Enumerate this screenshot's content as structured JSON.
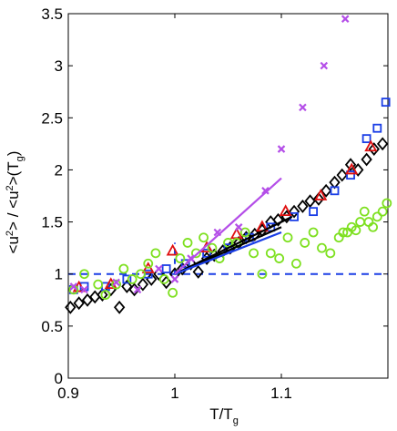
{
  "chart_data": {
    "type": "scatter",
    "title": "",
    "xlabel": "T/T_g",
    "ylabel": "<u^2> / <u^2>(T_g)",
    "xlim": [
      0.9,
      1.2
    ],
    "ylim": [
      0,
      3.5
    ],
    "x_ticks": [
      0.9,
      1.0,
      1.1
    ],
    "x_tick_labels": [
      "0.9",
      "1",
      "1.1"
    ],
    "y_ticks": [
      0,
      0.5,
      1,
      1.5,
      2,
      2.5,
      3,
      3.5
    ],
    "y_tick_labels": [
      "0",
      "0.5",
      "1",
      "1.5",
      "2",
      "2.5",
      "3",
      "3.5"
    ],
    "grid": false,
    "colors": {
      "black": "#000000",
      "blue": "#1a3ee6",
      "red": "#e01010",
      "green": "#7ee020",
      "magenta": "#b44ee8",
      "reference": "#1a3ee6"
    },
    "reference_lines": [
      {
        "orientation": "horizontal",
        "value": 1.0,
        "style": "dashed"
      },
      {
        "orientation": "vertical",
        "value": 1.0,
        "y_range": [
          1.0,
          1.3
        ],
        "style": "dashed"
      }
    ],
    "fit_lines": [
      {
        "color": "black",
        "x": [
          1.0,
          1.1
        ],
        "y": [
          1.0,
          1.45
        ]
      },
      {
        "color": "black",
        "x": [
          1.0,
          1.11
        ],
        "y": [
          1.0,
          1.55
        ]
      },
      {
        "color": "blue",
        "x": [
          1.0,
          1.1
        ],
        "y": [
          1.0,
          1.4
        ]
      },
      {
        "color": "magenta",
        "x": [
          1.0,
          1.1
        ],
        "y": [
          1.0,
          1.92
        ]
      }
    ],
    "series": [
      {
        "marker": "diamond",
        "color": "black",
        "x": [
          0.902,
          0.91,
          0.918,
          0.925,
          0.932,
          0.94,
          0.948,
          0.955,
          0.962,
          0.97,
          0.978,
          0.985,
          0.992,
          1.0,
          1.007,
          1.015,
          1.022,
          1.03,
          1.037,
          1.045,
          1.052,
          1.06,
          1.067,
          1.075,
          1.082,
          1.09,
          1.097,
          1.105,
          1.112,
          1.12,
          1.127,
          1.135,
          1.142,
          1.15,
          1.157,
          1.165,
          1.172,
          1.18,
          1.187,
          1.195
        ],
        "y": [
          0.68,
          0.72,
          0.75,
          0.78,
          0.8,
          0.85,
          0.68,
          0.88,
          0.85,
          0.9,
          0.95,
          1.0,
          0.92,
          1.0,
          1.05,
          1.1,
          1.02,
          1.15,
          1.18,
          1.22,
          1.25,
          1.3,
          1.35,
          1.38,
          1.42,
          1.5,
          1.52,
          1.55,
          1.6,
          1.65,
          1.7,
          1.72,
          1.8,
          1.88,
          1.95,
          2.05,
          2.0,
          2.1,
          2.2,
          2.25
        ]
      },
      {
        "marker": "square",
        "color": "blue",
        "x": [
          0.905,
          0.915,
          0.935,
          0.955,
          0.975,
          0.992,
          1.01,
          1.03,
          1.05,
          1.07,
          1.09,
          1.112,
          1.13,
          1.15,
          1.165,
          1.18,
          1.19,
          1.198
        ],
        "y": [
          0.85,
          0.88,
          0.88,
          0.95,
          1.0,
          1.05,
          1.1,
          1.2,
          1.25,
          1.35,
          1.45,
          1.55,
          1.6,
          1.8,
          1.95,
          2.3,
          2.4,
          2.65
        ]
      },
      {
        "marker": "triangle",
        "color": "red",
        "x": [
          0.91,
          0.94,
          0.975,
          0.998,
          1.03,
          1.058,
          1.082,
          1.104,
          1.137,
          1.166,
          1.184
        ],
        "y": [
          0.87,
          0.9,
          1.05,
          1.22,
          1.25,
          1.38,
          1.45,
          1.6,
          1.75,
          2.0,
          2.22
        ]
      },
      {
        "marker": "circle",
        "color": "green",
        "x": [
          0.905,
          0.915,
          0.928,
          0.935,
          0.945,
          0.952,
          0.96,
          0.968,
          0.975,
          0.982,
          0.99,
          0.998,
          1.005,
          1.012,
          1.02,
          1.027,
          1.035,
          1.042,
          1.05,
          1.058,
          1.066,
          1.074,
          1.082,
          1.09,
          1.098,
          1.106,
          1.114,
          1.122,
          1.13,
          1.138,
          1.146,
          1.154,
          1.158,
          1.162,
          1.166,
          1.17,
          1.174,
          1.178,
          1.182,
          1.186,
          1.19,
          1.195,
          1.199
        ],
        "y": [
          0.85,
          1.0,
          0.9,
          0.8,
          0.9,
          1.05,
          0.95,
          1.0,
          1.1,
          1.2,
          0.95,
          0.82,
          1.15,
          1.3,
          1.2,
          1.35,
          1.25,
          1.15,
          1.3,
          1.3,
          1.4,
          1.2,
          1.0,
          1.2,
          1.15,
          1.35,
          1.1,
          1.3,
          1.4,
          1.25,
          1.2,
          1.35,
          1.4,
          1.4,
          1.45,
          1.42,
          1.5,
          1.6,
          1.5,
          1.45,
          1.55,
          1.6,
          1.68
        ]
      },
      {
        "marker": "x",
        "color": "magenta",
        "x": [
          0.905,
          0.915,
          0.945,
          0.965,
          0.985,
          1.0,
          1.015,
          1.04,
          1.06,
          1.085,
          1.1,
          1.12,
          1.14,
          1.16
        ],
        "y": [
          0.88,
          0.85,
          0.92,
          0.85,
          1.05,
          0.95,
          1.15,
          1.4,
          1.45,
          1.8,
          2.2,
          2.6,
          3.0,
          3.45
        ]
      }
    ]
  }
}
